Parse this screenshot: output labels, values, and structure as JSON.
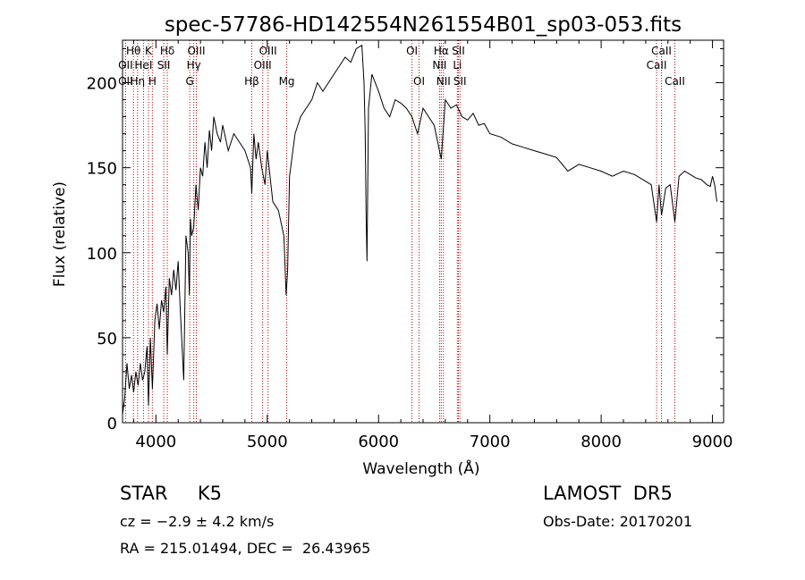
{
  "chart_data": {
    "type": "line",
    "title": "spec-57786-HD142554N261554B01_sp03-053.fits",
    "xlabel": "Wavelength (Å)",
    "ylabel": "Flux (relative)",
    "xlim": [
      3700,
      9100
    ],
    "ylim": [
      0,
      225
    ],
    "xticks": [
      4000,
      5000,
      6000,
      7000,
      8000,
      9000
    ],
    "yticks": [
      0,
      50,
      100,
      150,
      200
    ],
    "grid": false,
    "legend": "none",
    "series": [
      {
        "color": "#000000",
        "x": [
          3700,
          3720,
          3740,
          3760,
          3780,
          3800,
          3820,
          3840,
          3860,
          3880,
          3900,
          3920,
          3933,
          3950,
          3968,
          3990,
          4010,
          4030,
          4050,
          4070,
          4090,
          4102,
          4120,
          4140,
          4160,
          4180,
          4200,
          4220,
          4250,
          4270,
          4290,
          4300,
          4310,
          4320,
          4340,
          4360,
          4380,
          4400,
          4420,
          4440,
          4460,
          4480,
          4500,
          4520,
          4550,
          4580,
          4600,
          4650,
          4700,
          4750,
          4800,
          4850,
          4861,
          4880,
          4900,
          4920,
          4950,
          4980,
          5000,
          5050,
          5100,
          5150,
          5170,
          5183,
          5200,
          5250,
          5300,
          5350,
          5400,
          5450,
          5500,
          5550,
          5600,
          5650,
          5700,
          5750,
          5800,
          5850,
          5870,
          5880,
          5889,
          5896,
          5910,
          5940,
          5970,
          6000,
          6050,
          6100,
          6150,
          6200,
          6250,
          6300,
          6350,
          6400,
          6450,
          6500,
          6563,
          6600,
          6650,
          6700,
          6750,
          6800,
          6850,
          6900,
          6950,
          7000,
          7100,
          7200,
          7300,
          7400,
          7500,
          7600,
          7700,
          7800,
          7900,
          8000,
          8100,
          8200,
          8300,
          8400,
          8450,
          8498,
          8520,
          8542,
          8580,
          8620,
          8662,
          8700,
          8750,
          8800,
          8850,
          8900,
          8950,
          8980,
          9000,
          9020,
          9040
        ],
        "y": [
          5,
          15,
          35,
          20,
          28,
          18,
          30,
          22,
          35,
          25,
          30,
          45,
          10,
          50,
          20,
          60,
          70,
          55,
          72,
          65,
          80,
          40,
          85,
          75,
          90,
          78,
          95,
          65,
          25,
          110,
          100,
          75,
          120,
          110,
          115,
          140,
          125,
          150,
          145,
          165,
          150,
          172,
          160,
          180,
          170,
          165,
          175,
          160,
          170,
          165,
          160,
          150,
          135,
          170,
          155,
          165,
          150,
          140,
          160,
          130,
          125,
          110,
          75,
          90,
          145,
          170,
          180,
          185,
          190,
          200,
          195,
          200,
          205,
          210,
          215,
          212,
          220,
          222,
          200,
          170,
          120,
          95,
          185,
          205,
          200,
          195,
          185,
          180,
          190,
          188,
          185,
          180,
          170,
          185,
          180,
          175,
          155,
          190,
          185,
          187,
          180,
          178,
          182,
          175,
          176,
          170,
          168,
          164,
          162,
          160,
          158,
          156,
          148,
          152,
          150,
          148,
          145,
          148,
          146,
          142,
          140,
          118,
          140,
          122,
          138,
          140,
          118,
          145,
          148,
          146,
          144,
          143,
          140,
          139,
          145,
          140,
          130
        ]
      }
    ],
    "spectral_lines": [
      {
        "label": "Hθ",
        "x": 3798,
        "row": 1
      },
      {
        "label": "K",
        "x": 3933,
        "row": 1
      },
      {
        "label": "Hδ",
        "x": 4102,
        "row": 1
      },
      {
        "label": "OIII",
        "x": 4363,
        "row": 1
      },
      {
        "label": "OIII",
        "x": 5007,
        "row": 1
      },
      {
        "label": "OI",
        "x": 6300,
        "row": 1
      },
      {
        "label": "Hα",
        "x": 6563,
        "row": 1
      },
      {
        "label": "SII",
        "x": 6717,
        "row": 1
      },
      {
        "label": "CaII",
        "x": 8542,
        "row": 1
      },
      {
        "label": "OII",
        "x": 3727,
        "row": 2
      },
      {
        "label": "HeI",
        "x": 3888,
        "row": 2
      },
      {
        "label": "SII",
        "x": 4070,
        "row": 2
      },
      {
        "label": "Hγ",
        "x": 4340,
        "row": 2
      },
      {
        "label": "OIII",
        "x": 4959,
        "row": 2
      },
      {
        "label": "NII",
        "x": 6548,
        "row": 2
      },
      {
        "label": "Li",
        "x": 6708,
        "row": 2
      },
      {
        "label": "CaII",
        "x": 8498,
        "row": 2
      },
      {
        "label": "OII",
        "x": 3727,
        "row": 3
      },
      {
        "label": "Hη",
        "x": 3835,
        "row": 3
      },
      {
        "label": "H",
        "x": 3968,
        "row": 3
      },
      {
        "label": "G",
        "x": 4304,
        "row": 3
      },
      {
        "label": "Hβ",
        "x": 4861,
        "row": 3
      },
      {
        "label": "Mg",
        "x": 5175,
        "row": 3
      },
      {
        "label": "OI",
        "x": 6364,
        "row": 3
      },
      {
        "label": "NII",
        "x": 6583,
        "row": 3
      },
      {
        "label": "SII",
        "x": 6731,
        "row": 3
      },
      {
        "label": "CaII",
        "x": 8662,
        "row": 3
      }
    ]
  },
  "info": {
    "star": "STAR     K5",
    "survey": "LAMOST  DR5",
    "cz": "cz = −2.9 ± 4.2 km/s",
    "obs_date": "Obs-Date: 20170201",
    "coords": "RA = 215.01494, DEC =  26.43965"
  }
}
